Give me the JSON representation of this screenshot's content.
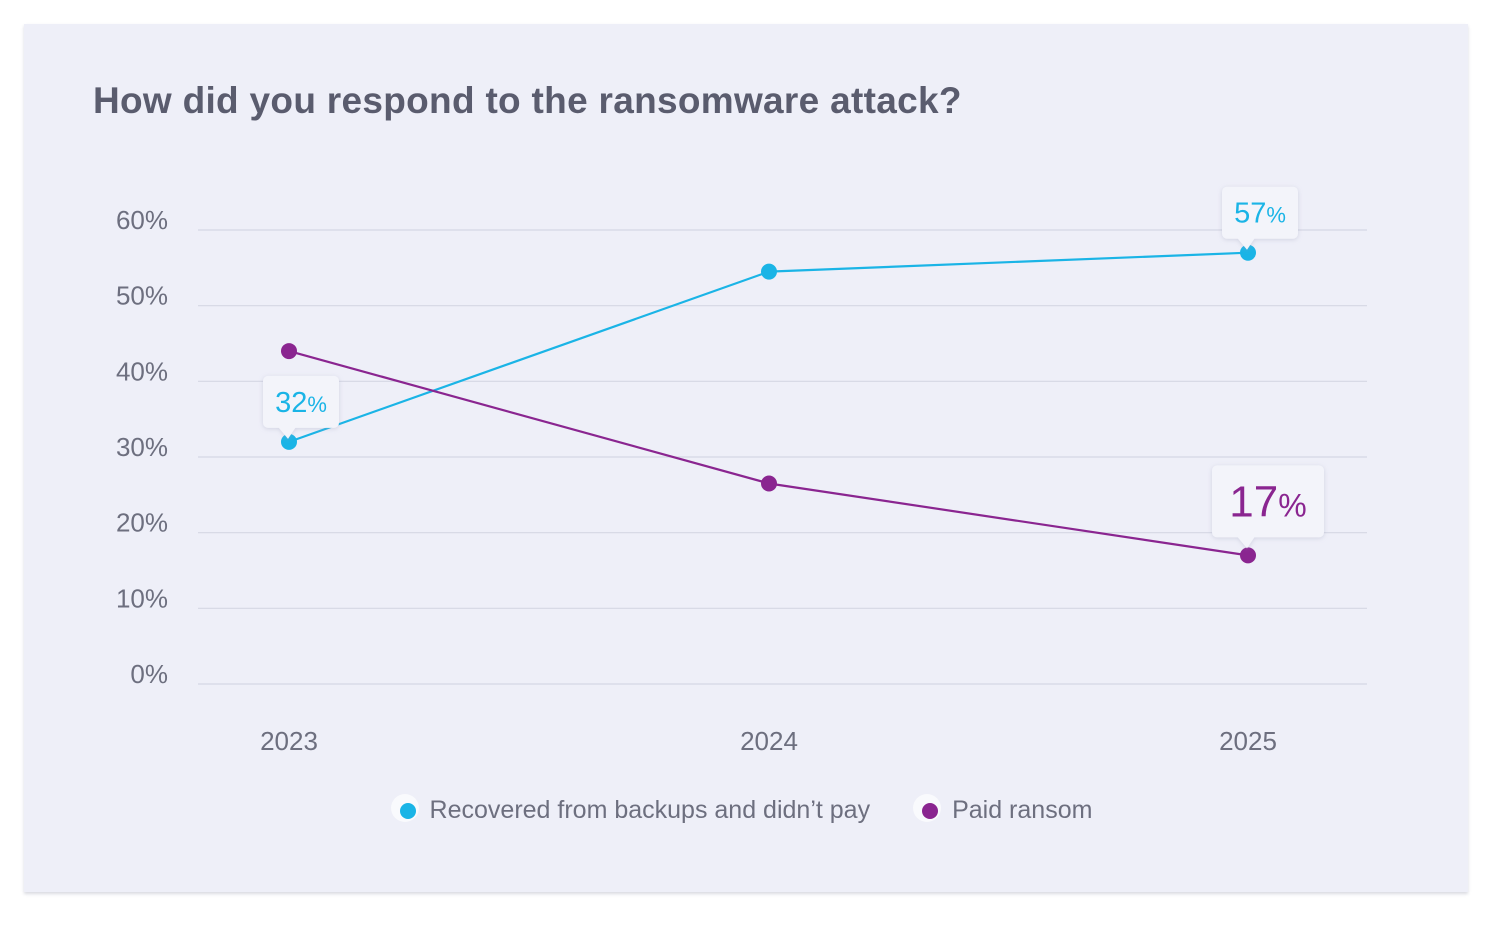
{
  "chart_data": {
    "type": "line",
    "title": "How did you respond to the ransomware attack?",
    "x": [
      "2023",
      "2024",
      "2025"
    ],
    "y_ticks": [
      "0%",
      "10%",
      "20%",
      "30%",
      "40%",
      "50%",
      "60%"
    ],
    "ylim": [
      0,
      60
    ],
    "grid": true,
    "legend_position": "bottom",
    "series": [
      {
        "name": "Recovered from backups and didn’t pay",
        "color": "#1ab4e6",
        "values": [
          32,
          54.5,
          57
        ],
        "annotations": [
          {
            "index": 0,
            "number": "32",
            "unit": "%"
          },
          {
            "index": 2,
            "number": "57",
            "unit": "%"
          }
        ]
      },
      {
        "name": "Paid ransom",
        "color": "#8a2590",
        "values": [
          44,
          26.5,
          17
        ],
        "annotations": [
          {
            "index": 2,
            "number": "17",
            "unit": "%"
          }
        ]
      }
    ]
  }
}
